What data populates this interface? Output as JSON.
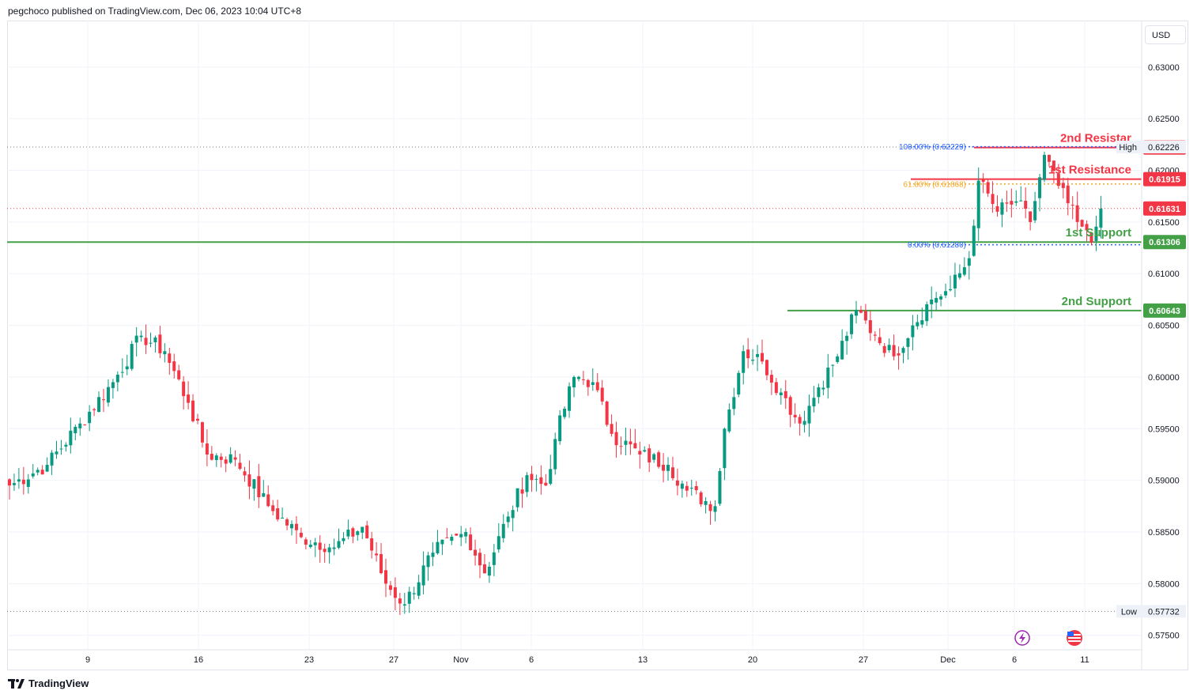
{
  "header": {
    "publisher_text": "pegchoco published on TradingView.com, Dec 06, 2023 10:04 UTC+8"
  },
  "price_axis": {
    "currency": "USD"
  },
  "footer": {
    "brand": "TradingView"
  },
  "colors": {
    "up": "#089981",
    "down": "#f23645",
    "resistance": "#f23645",
    "support": "#43a047",
    "fib_blue": "#2962ff",
    "fib_orange": "#f5a623",
    "axis_text": "#131722",
    "grid": "#f0f3fa"
  },
  "icons": [
    "lightning-icon",
    "us-flag-icon",
    "tradingview-logo-icon"
  ],
  "chart_data": {
    "type": "candlestick",
    "symbol_currency": "USD",
    "y_ticks": [
      "0.63000",
      "0.62500",
      "0.62000",
      "0.61500",
      "0.61000",
      "0.60500",
      "0.60000",
      "0.59500",
      "0.59000",
      "0.58500",
      "0.58000",
      "0.57500"
    ],
    "x_ticks": [
      "9",
      "16",
      "23",
      "27",
      "Nov",
      "6",
      "13",
      "20",
      "27",
      "Dec",
      "6",
      "11"
    ],
    "ylim": [
      0.5736,
      0.6345
    ],
    "high": {
      "label": "High",
      "value": "0.62226"
    },
    "low": {
      "label": "Low",
      "value": "0.57732"
    },
    "current_price": "0.61631",
    "levels": [
      {
        "name": "2nd Resistar",
        "value": "0.62221",
        "kind": "resistance"
      },
      {
        "name": "1st Resistance",
        "value": "0.61915",
        "kind": "resistance"
      },
      {
        "name": "1st Support",
        "value": "0.61306",
        "kind": "support"
      },
      {
        "name": "2nd Support",
        "value": "0.60643",
        "kind": "support"
      }
    ],
    "fibonacci": [
      {
        "label": "100.00% (0.62229)",
        "value": 0.62229
      },
      {
        "label": "61.80% (0.61868)",
        "value": 0.61868
      },
      {
        "label": "0.00% (0.61280)",
        "value": 0.6128
      }
    ],
    "candle_anchors": [
      {
        "i": 0,
        "c": 0.5895
      },
      {
        "i": 8,
        "c": 0.5915
      },
      {
        "i": 15,
        "c": 0.5955
      },
      {
        "i": 22,
        "c": 0.5995
      },
      {
        "i": 28,
        "c": 0.604
      },
      {
        "i": 33,
        "c": 0.6025
      },
      {
        "i": 38,
        "c": 0.5975
      },
      {
        "i": 42,
        "c": 0.5925
      },
      {
        "i": 48,
        "c": 0.592
      },
      {
        "i": 55,
        "c": 0.5875
      },
      {
        "i": 62,
        "c": 0.5845
      },
      {
        "i": 69,
        "c": 0.5835
      },
      {
        "i": 75,
        "c": 0.5855
      },
      {
        "i": 80,
        "c": 0.58
      },
      {
        "i": 84,
        "c": 0.578
      },
      {
        "i": 90,
        "c": 0.583
      },
      {
        "i": 97,
        "c": 0.585
      },
      {
        "i": 101,
        "c": 0.581
      },
      {
        "i": 106,
        "c": 0.5865
      },
      {
        "i": 110,
        "c": 0.5905
      },
      {
        "i": 114,
        "c": 0.5895
      },
      {
        "i": 116,
        "c": 0.594
      },
      {
        "i": 120,
        "c": 0.6
      },
      {
        "i": 124,
        "c": 0.5995
      },
      {
        "i": 128,
        "c": 0.5945
      },
      {
        "i": 134,
        "c": 0.5925
      },
      {
        "i": 140,
        "c": 0.5915
      },
      {
        "i": 144,
        "c": 0.589
      },
      {
        "i": 150,
        "c": 0.5875
      },
      {
        "i": 152,
        "c": 0.595
      },
      {
        "i": 156,
        "c": 0.6025
      },
      {
        "i": 160,
        "c": 0.6015
      },
      {
        "i": 164,
        "c": 0.5985
      },
      {
        "i": 168,
        "c": 0.5955
      },
      {
        "i": 172,
        "c": 0.599
      },
      {
        "i": 176,
        "c": 0.602
      },
      {
        "i": 180,
        "c": 0.6065
      },
      {
        "i": 184,
        "c": 0.604
      },
      {
        "i": 188,
        "c": 0.602
      },
      {
        "i": 192,
        "c": 0.605
      },
      {
        "i": 196,
        "c": 0.6075
      },
      {
        "i": 200,
        "c": 0.6085
      },
      {
        "i": 204,
        "c": 0.6115
      },
      {
        "i": 206,
        "c": 0.619
      },
      {
        "i": 210,
        "c": 0.616
      },
      {
        "i": 214,
        "c": 0.617
      },
      {
        "i": 217,
        "c": 0.615
      },
      {
        "i": 220,
        "c": 0.6215
      },
      {
        "i": 223,
        "c": 0.6185
      },
      {
        "i": 227,
        "c": 0.615
      },
      {
        "i": 230,
        "c": 0.613
      },
      {
        "i": 232,
        "c": 0.6163
      }
    ]
  }
}
